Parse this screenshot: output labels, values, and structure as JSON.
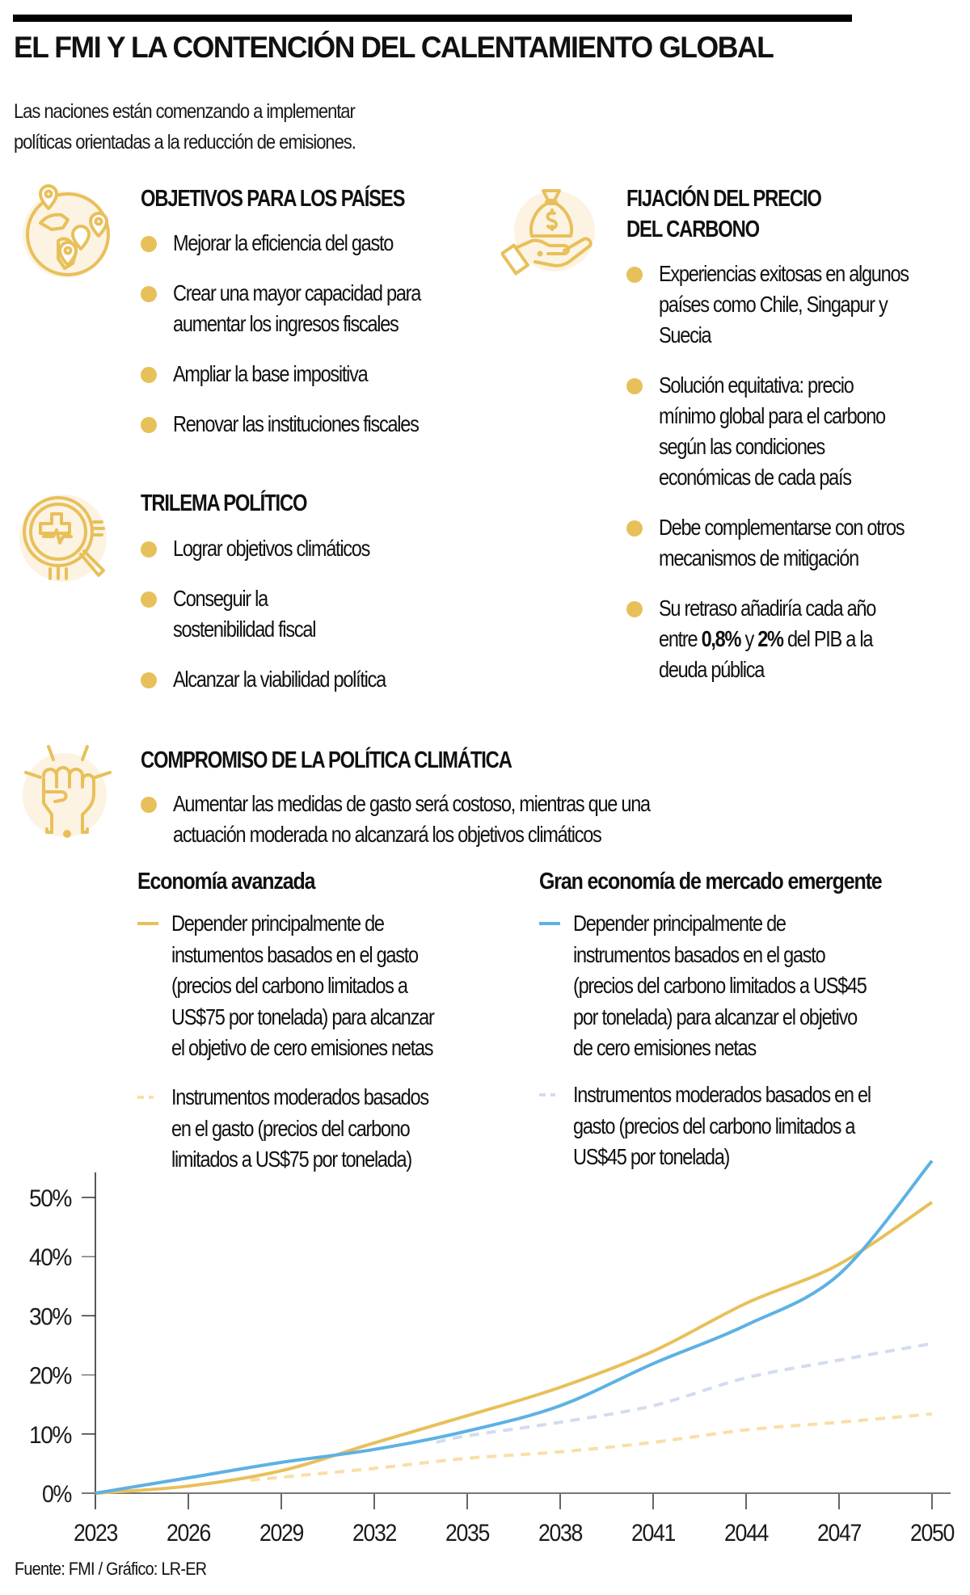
{
  "header": {
    "title": "EL FMI Y LA CONTENCIÓN DEL CALENTAMIENTO GLOBAL",
    "subtitle_lines": [
      "Las naciones están comenzando a implementar",
      "políticas orientadas a la reducción de emisiones."
    ]
  },
  "colors": {
    "accent_gold": "#e8c05a",
    "icon_bg": "#fcf3e3",
    "blue": "#5db1e4",
    "gold_dashed": "#f8dfa8",
    "blue_dashed": "#d3dcef",
    "axis": "#777777"
  },
  "sections": {
    "objetivos": {
      "icon": "globe-map-pins-icon",
      "heading": "OBJETIVOS PARA LOS PAÍSES",
      "items": [
        {
          "lines": [
            "Mejorar la eficiencia del gasto"
          ]
        },
        {
          "lines": [
            "Crear una mayor capacidad para",
            "aumentar los ingresos fiscales"
          ]
        },
        {
          "lines": [
            "Ampliar la base impositiva"
          ]
        },
        {
          "lines": [
            "Renovar las instituciones fiscales"
          ]
        }
      ]
    },
    "trilema": {
      "icon": "magnifier-chart-icon",
      "heading": "TRILEMA POLÍTICO",
      "items": [
        {
          "lines": [
            "Lograr objetivos climáticos"
          ]
        },
        {
          "lines": [
            "Conseguir la",
            "sostenibilidad fiscal"
          ]
        },
        {
          "lines": [
            "Alcanzar la viabilidad política"
          ]
        }
      ]
    },
    "precio": {
      "icon": "money-bag-hand-icon",
      "heading_lines": [
        "FIJACIÓN DEL PRECIO",
        "DEL CARBONO"
      ],
      "items": [
        {
          "lines": [
            "Experiencias exitosas en algunos",
            "países como Chile, Singapur y",
            "Suecia"
          ]
        },
        {
          "lines": [
            "Solución equitativa: precio",
            "mínimo global  para el carbono",
            "según las condiciones",
            "económicas de cada país"
          ]
        },
        {
          "lines": [
            "Debe complementarse con otros",
            "mecanismos de mitigación"
          ]
        },
        {
          "pre": "Su retraso añadiría cada año",
          "line2_a": "entre ",
          "bold1": "0,8%",
          "line2_b": " y ",
          "bold2": "2%",
          "line2_c": " del PIB a la",
          "line3": "deuda pública"
        }
      ]
    },
    "compromiso": {
      "icon": "raised-fist-icon",
      "heading": "COMPROMISO DE LA POLÍTICA CLIMÁTICA",
      "items": [
        {
          "lines": [
            "Aumentar las medidas de gasto será costoso, mientras que una",
            "actuación moderada no alcanzará los objetivos climáticos"
          ]
        }
      ]
    }
  },
  "legend": {
    "advanced": {
      "heading": "Economía avanzada",
      "solid": [
        "Depender principalmente de",
        "instumentos basados en el gasto",
        "(precios del carbono limitados a",
        "US$75 por tonelada) para alcanzar",
        "el objetivo de cero emisiones netas"
      ],
      "dashed": [
        "Instrumentos moderados basados",
        "en el gasto (precios del carbono",
        "limitados a US$75 por tonelada)"
      ]
    },
    "emerging": {
      "heading": "Gran economía de mercado emergente",
      "solid": [
        "Depender principalmente de",
        "instrumentos basados en el gasto",
        "(precios del carbono limitados a US$45",
        "por tonelada) para alcanzar el objetivo",
        "de cero emisiones netas"
      ],
      "dashed": [
        "Instrumentos moderados basados en el",
        "gasto (precios del carbono limitados a",
        "US$45 por tonelada)"
      ]
    }
  },
  "chart_data": {
    "type": "line",
    "title": "",
    "xlabel": "",
    "ylabel": "",
    "x": [
      2023,
      2026,
      2029,
      2032,
      2035,
      2038,
      2041,
      2044,
      2047,
      2050
    ],
    "x_ticks": [
      "2023",
      "2026",
      "2029",
      "2032",
      "2035",
      "2038",
      "2041",
      "2044",
      "2047",
      "2050"
    ],
    "y_ticks": [
      "0%",
      "10%",
      "20%",
      "30%",
      "40%",
      "50%"
    ],
    "ylim": [
      0,
      50
    ],
    "grid": false,
    "legend_position": "top",
    "series": [
      {
        "name": "Economía avanzada — instrumentos basados en el gasto (US$75/t) para cero emisiones netas",
        "style": "solid",
        "color": "#e8c05a",
        "x": [
          2023,
          2026,
          2029,
          2032,
          2035,
          2038,
          2041,
          2044,
          2047,
          2050
        ],
        "values": [
          0,
          1.2,
          3.8,
          8.5,
          13.1,
          17.9,
          24.0,
          32.1,
          38.7,
          49.2
        ]
      },
      {
        "name": "Gran economía de mercado emergente — instrumentos basados en el gasto (US$45/t) para cero emisiones netas",
        "style": "solid",
        "color": "#5db1e4",
        "x": [
          2023,
          2026,
          2029,
          2032,
          2035,
          2038,
          2041,
          2044,
          2047,
          2050
        ],
        "values": [
          0,
          2.6,
          5.2,
          7.4,
          10.5,
          14.8,
          21.9,
          28.4,
          37.0,
          56.2
        ]
      },
      {
        "name": "Economía avanzada — instrumentos moderados (US$75/t)",
        "style": "dashed",
        "color": "#f8dfa8",
        "x": [
          2028,
          2029,
          2032,
          2035,
          2038,
          2041,
          2044,
          2047,
          2050
        ],
        "values": [
          2.2,
          2.7,
          4.2,
          5.9,
          7.0,
          8.6,
          10.7,
          12.0,
          13.4
        ]
      },
      {
        "name": "Gran economía de mercado emergente — instrumentos moderados (US$45/t)",
        "style": "dashed",
        "color": "#d3dcef",
        "x": [
          2034,
          2035,
          2038,
          2041,
          2044,
          2047,
          2050
        ],
        "values": [
          8.6,
          9.7,
          12.0,
          14.8,
          19.5,
          22.5,
          25.3
        ]
      }
    ]
  },
  "footer": {
    "source": "Fuente: FMI / Gráfico: LR-ER"
  }
}
